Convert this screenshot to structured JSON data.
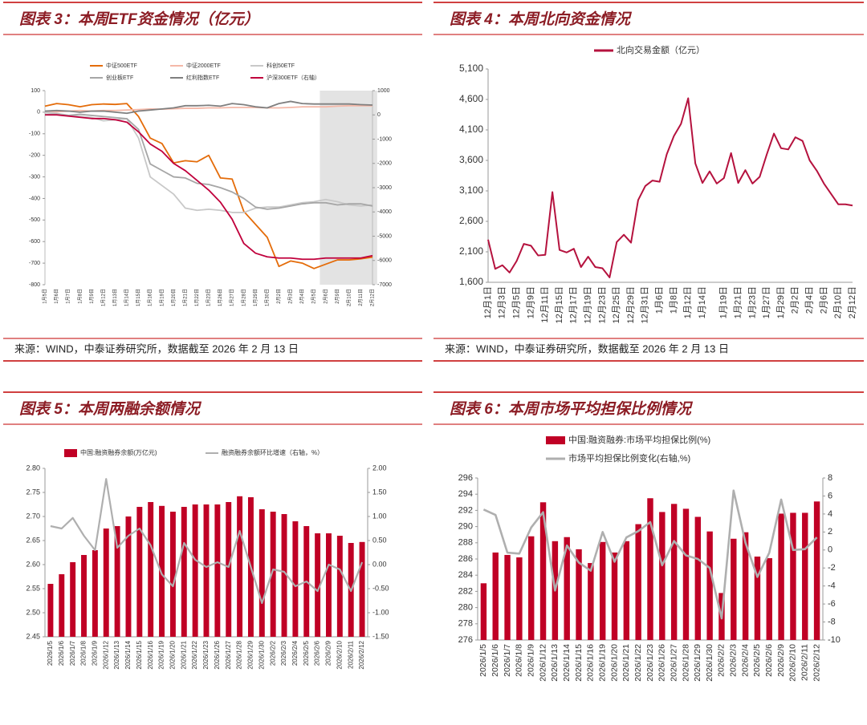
{
  "chart_data": [
    {
      "type": "line",
      "title": "图表 3：本周ETF资金情况（亿元）",
      "source": "来源：WIND，中泰证券研究所，数据截至 2026 年 2 月 13 日",
      "categories": [
        "1月5日",
        "1月6日",
        "1月7日",
        "1月8日",
        "1月9日",
        "1月12日",
        "1月13日",
        "1月14日",
        "1月15日",
        "1月16日",
        "1月19日",
        "1月20日",
        "1月21日",
        "1月22日",
        "1月23日",
        "1月26日",
        "1月27日",
        "1月28日",
        "1月29日",
        "1月30日",
        "2月2日",
        "2月3日",
        "2月4日",
        "2月5日",
        "2月6日",
        "2月9日",
        "2月10日",
        "2月11日",
        "2月12日"
      ],
      "shade": [
        24,
        28
      ],
      "ylim": [
        -800,
        100
      ],
      "yticks": [
        100,
        0,
        -100,
        -200,
        -300,
        -400,
        -500,
        -600,
        -700,
        -800
      ],
      "y2lim": [
        -7000,
        1000
      ],
      "y2ticks": [
        1000,
        0,
        -1000,
        -2000,
        -3000,
        -4000,
        -5000,
        -6000,
        -7000
      ],
      "series": [
        {
          "name": "中证500ETF",
          "kind": "line",
          "color": "#e46c0a",
          "values": [
            28,
            40,
            35,
            25,
            35,
            38,
            36,
            40,
            -20,
            -120,
            -145,
            -235,
            -225,
            -230,
            -200,
            -305,
            -310,
            -460,
            -520,
            -580,
            -715,
            -690,
            -700,
            -725,
            -705,
            -685,
            -685,
            -680,
            -672
          ]
        },
        {
          "name": "中证2000ETF",
          "kind": "line",
          "color": "#f4b8a8",
          "values": [
            0,
            2,
            5,
            8,
            5,
            8,
            8,
            10,
            12,
            15,
            14,
            16,
            18,
            18,
            20,
            20,
            22,
            22,
            22,
            20,
            20,
            22,
            25,
            25,
            25,
            28,
            30,
            30,
            30
          ]
        },
        {
          "name": "科创50ETF",
          "kind": "line",
          "color": "#c8c8c8",
          "values": [
            0,
            -5,
            -15,
            -20,
            -25,
            -40,
            -35,
            -30,
            -120,
            -300,
            -340,
            -380,
            -445,
            -455,
            -450,
            -455,
            -465,
            -465,
            -445,
            -440,
            -440,
            -430,
            -420,
            -415,
            -405,
            -415,
            -430,
            -435,
            -430
          ]
        },
        {
          "name": "创业板ETF",
          "kind": "line",
          "color": "#a6a6a6",
          "values": [
            -10,
            -10,
            -15,
            -10,
            -15,
            -20,
            -25,
            -30,
            -80,
            -240,
            -270,
            -300,
            -305,
            -330,
            -335,
            -350,
            -370,
            -400,
            -440,
            -450,
            -445,
            -435,
            -425,
            -420,
            -420,
            -430,
            -425,
            -425,
            -435
          ]
        },
        {
          "name": "红利指数ETF",
          "kind": "line",
          "color": "#7f7f7f",
          "values": [
            5,
            8,
            5,
            0,
            5,
            5,
            0,
            -5,
            5,
            10,
            15,
            20,
            30,
            30,
            32,
            28,
            40,
            35,
            25,
            20,
            40,
            50,
            40,
            38,
            38,
            38,
            38,
            35,
            33
          ]
        },
        {
          "name": "沪深300ETF（右轴）",
          "kind": "line",
          "axis": "y2",
          "color": "#c0003c",
          "values": [
            0,
            0,
            -50,
            -100,
            -150,
            -150,
            -200,
            -300,
            -700,
            -1200,
            -1500,
            -2000,
            -2300,
            -2700,
            -3100,
            -3600,
            -4300,
            -5300,
            -5700,
            -5850,
            -5900,
            -5900,
            -5950,
            -5950,
            -5900,
            -5900,
            -5900,
            -5900,
            -5800
          ]
        }
      ]
    },
    {
      "type": "line",
      "title": "图表 4：本周北向资金情况",
      "source": "来源：WIND，中泰证券研究所，数据截至 2026 年 2 月 13 日",
      "categories": [
        "12月1日",
        null,
        "12月3日",
        null,
        "12月5日",
        null,
        "12月9日",
        null,
        "12月11日",
        null,
        "12月15日",
        null,
        "12月17日",
        null,
        "12月19日",
        null,
        "12月23日",
        null,
        "12月25日",
        null,
        "12月29日",
        null,
        "12月31日",
        null,
        "1月6日",
        null,
        "1月8日",
        null,
        "1月12日",
        null,
        "1月14日",
        null,
        null,
        "1月19日",
        null,
        "1月21日",
        null,
        "1月23日",
        null,
        "1月27日",
        null,
        "1月29日",
        null,
        "2月2日",
        null,
        "2月4日",
        null,
        "2月6日",
        null,
        "2月10日",
        null,
        "2月12日"
      ],
      "ylim": [
        1600,
        5100
      ],
      "yticks": [
        {
          "value": 1600,
          "label": "1,600"
        },
        {
          "value": 2100,
          "label": "2,100"
        },
        {
          "value": 2600,
          "label": "2,600"
        },
        {
          "value": 3100,
          "label": "3,100"
        },
        {
          "value": 3600,
          "label": "3,600"
        },
        {
          "value": 4100,
          "label": "4,100"
        },
        {
          "value": 4600,
          "label": "4,600"
        },
        {
          "value": 5100,
          "label": "5,100"
        }
      ],
      "series": [
        {
          "name": "北向交易金额（亿元）",
          "kind": "line",
          "color": "#b5123e",
          "values": [
            2300,
            1820,
            1880,
            1760,
            1950,
            2230,
            2200,
            2040,
            2050,
            3080,
            2130,
            2090,
            2150,
            1850,
            2020,
            1850,
            1830,
            1680,
            2260,
            2380,
            2250,
            2950,
            3180,
            3270,
            3250,
            3700,
            4000,
            4200,
            4620,
            3550,
            3230,
            3420,
            3220,
            3310,
            3720,
            3230,
            3440,
            3220,
            3330,
            3700,
            4040,
            3800,
            3780,
            3980,
            3920,
            3600,
            3430,
            3220,
            3050,
            2880,
            2880,
            2860
          ]
        }
      ]
    },
    {
      "type": "bar_line",
      "title": "图表 5：本周两融余额情况",
      "source": "来源：WIND，中泰证券研究所，数据截至 2026 年 2 月 13 日",
      "categories": [
        "2026/1/5",
        "2026/1/6",
        "2026/1/7",
        "2026/1/8",
        "2026/1/9",
        "2026/1/12",
        "2026/1/13",
        "2026/1/14",
        "2026/1/15",
        "2026/1/16",
        "2026/1/19",
        "2026/1/20",
        "2026/1/21",
        "2026/1/22",
        "2026/1/23",
        "2026/1/26",
        "2026/1/27",
        "2026/1/28",
        "2026/1/29",
        "2026/1/30",
        "2026/2/2",
        "2026/2/3",
        "2026/2/4",
        "2026/2/5",
        "2026/2/6",
        "2026/2/9",
        "2026/2/10",
        "2026/2/11",
        "2026/2/12"
      ],
      "ylim": [
        2.45,
        2.8
      ],
      "yticks": [
        2.45,
        {
          "value": 2.5,
          "label": "2.50"
        },
        2.55,
        {
          "value": 2.6,
          "label": "2.60"
        },
        2.65,
        {
          "value": 2.7,
          "label": "2.70"
        },
        2.75,
        {
          "value": 2.8,
          "label": "2.80"
        }
      ],
      "y2lim": [
        -1.5,
        2
      ],
      "y2ticks": [
        {
          "value": -1.5,
          "label": "-1.50"
        },
        {
          "value": -1,
          "label": "-1.00"
        },
        {
          "value": -0.5,
          "label": "-0.50"
        },
        {
          "value": 0,
          "label": "0.00"
        },
        {
          "value": 0.5,
          "label": "0.50"
        },
        {
          "value": 1,
          "label": "1.00"
        },
        {
          "value": 1.5,
          "label": "1.50"
        },
        {
          "value": 2,
          "label": "2.00"
        }
      ],
      "series": [
        {
          "name": "中国:融资融券余额(万亿元)",
          "kind": "bar",
          "color": "#c00025",
          "values": [
            2.56,
            2.58,
            2.605,
            2.62,
            2.63,
            2.675,
            2.68,
            2.7,
            2.72,
            2.73,
            2.722,
            2.71,
            2.72,
            2.725,
            2.725,
            2.725,
            2.73,
            2.742,
            2.74,
            2.715,
            2.71,
            2.705,
            2.69,
            2.68,
            2.665,
            2.665,
            2.66,
            2.645,
            2.647
          ]
        },
        {
          "name": "融资融券余额环比增速（右轴，%）",
          "kind": "line",
          "axis": "y2",
          "color": "#afafaf",
          "values": [
            0.8,
            0.75,
            0.97,
            0.6,
            0.3,
            1.78,
            0.35,
            0.6,
            0.75,
            0.4,
            -0.2,
            -0.45,
            0.45,
            0.1,
            -0.05,
            0.05,
            -0.05,
            0.7,
            -0.05,
            -0.8,
            -0.1,
            -0.15,
            -0.45,
            -0.35,
            -0.55,
            0,
            -0.1,
            -0.55,
            0.05
          ]
        }
      ]
    },
    {
      "type": "bar_line",
      "title": "图表 6：本周市场平均担保比例情况",
      "source": "来源：WIND，中泰证券研究所，数据截至 2026 年 2 月 13 日",
      "categories": [
        "2026/1/5",
        "2026/1/6",
        "2026/1/7",
        "2026/1/8",
        "2026/1/9",
        "2026/1/12",
        "2026/1/13",
        "2026/1/14",
        "2026/1/15",
        "2026/1/16",
        "2026/1/19",
        "2026/1/20",
        "2026/1/21",
        "2026/1/22",
        "2026/1/23",
        "2026/1/26",
        "2026/1/27",
        "2026/1/28",
        "2026/1/29",
        "2026/1/30",
        "2026/2/2",
        "2026/2/3",
        "2026/2/4",
        "2026/2/5",
        "2026/2/6",
        "2026/2/9",
        "2026/2/10",
        "2026/2/11",
        "2026/2/12"
      ],
      "ylim": [
        276,
        296
      ],
      "yticks": [
        276,
        278,
        280,
        282,
        284,
        286,
        288,
        290,
        292,
        294,
        296
      ],
      "y2lim": [
        -10,
        8
      ],
      "y2ticks": [
        -10,
        -8,
        -6,
        -4,
        -2,
        0,
        2,
        4,
        6,
        8
      ],
      "series": [
        {
          "name": "中国:融资融券:市场平均担保比例(%)",
          "kind": "bar",
          "color": "#c00025",
          "values": [
            283,
            286.8,
            286.5,
            286.2,
            288.8,
            293,
            288.2,
            288.7,
            287.2,
            285.5,
            288.1,
            286.8,
            288.2,
            290.3,
            293.5,
            291.8,
            292.8,
            292.2,
            291.2,
            289.4,
            281.8,
            288.5,
            289.3,
            286.3,
            286.1,
            291.6,
            291.7,
            291.7,
            293.1
          ]
        },
        {
          "name": "市场平均担保比例变化(右轴,%)",
          "kind": "line",
          "axis": "y2",
          "color": "#afafaf",
          "values": [
            4.5,
            3.9,
            -0.3,
            -0.4,
            2.5,
            4.2,
            -4.5,
            0.5,
            -1.4,
            -2.3,
            2,
            -1.3,
            1.4,
            2.1,
            3.1,
            -1.7,
            1,
            -0.6,
            -1,
            -2,
            -7.6,
            6.6,
            0.8,
            -3,
            -0.3,
            5.6,
            0,
            0.1,
            1.4
          ]
        }
      ]
    }
  ]
}
